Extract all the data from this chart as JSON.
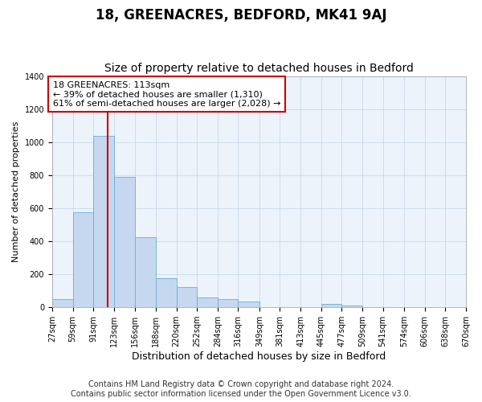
{
  "title": "18, GREENACRES, BEDFORD, MK41 9AJ",
  "subtitle": "Size of property relative to detached houses in Bedford",
  "xlabel": "Distribution of detached houses by size in Bedford",
  "ylabel": "Number of detached properties",
  "footer_line1": "Contains HM Land Registry data © Crown copyright and database right 2024.",
  "footer_line2": "Contains public sector information licensed under the Open Government Licence v3.0.",
  "annotation_line1": "18 GREENACRES: 113sqm",
  "annotation_line2": "← 39% of detached houses are smaller (1,310)",
  "annotation_line3": "61% of semi-detached houses are larger (2,028) →",
  "property_size_sqm": 113,
  "bin_edges": [
    27,
    59,
    91,
    123,
    156,
    188,
    220,
    252,
    284,
    316,
    349,
    381,
    413,
    445,
    477,
    509,
    541,
    574,
    606,
    638,
    670
  ],
  "bar_heights": [
    50,
    575,
    1040,
    790,
    425,
    175,
    125,
    60,
    50,
    35,
    0,
    0,
    0,
    20,
    10,
    0,
    0,
    0,
    0,
    0
  ],
  "bar_color": "#c5d8ef",
  "bar_edge_color": "#6baed6",
  "vline_color": "#cc0000",
  "vline_x": 113,
  "ylim": [
    0,
    1400
  ],
  "yticks": [
    0,
    200,
    400,
    600,
    800,
    1000,
    1200,
    1400
  ],
  "grid_color": "#c8d8ea",
  "bg_color": "#edf3fb",
  "annotation_box_color": "#cc0000",
  "title_fontsize": 12,
  "subtitle_fontsize": 10,
  "xlabel_fontsize": 9,
  "ylabel_fontsize": 8,
  "tick_fontsize": 7,
  "annotation_fontsize": 8,
  "footer_fontsize": 7
}
